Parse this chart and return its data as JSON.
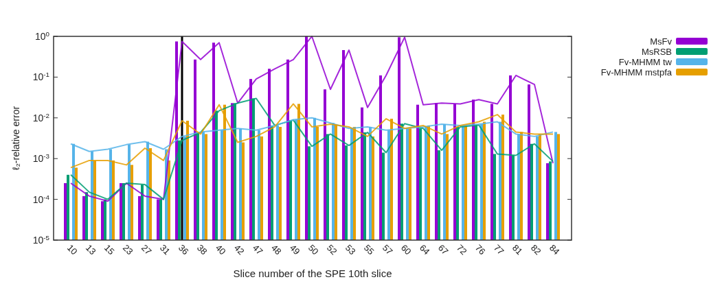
{
  "chart_data": {
    "type": "bar",
    "xlabel": "Slice number of the SPE 10th slice",
    "ylabel": "ℓ₂-relative error",
    "categories": [
      "10",
      "13",
      "15",
      "23",
      "27",
      "31",
      "36",
      "38",
      "40",
      "42",
      "47",
      "48",
      "49",
      "50",
      "52",
      "53",
      "55",
      "57",
      "60",
      "64",
      "67",
      "72",
      "76",
      "77",
      "81",
      "82",
      "84"
    ],
    "log": "y",
    "ylim": [
      1e-05,
      1
    ],
    "yticks": [
      {
        "value": 1e-05,
        "label": "10$^{-5}$"
      },
      {
        "value": 0.0001,
        "label": "10$^{-4}$"
      },
      {
        "value": 0.001,
        "label": "10$^{-3}$"
      },
      {
        "value": 0.01,
        "label": "10$^{-2}$"
      },
      {
        "value": 0.1,
        "label": "10$^{-1}$"
      },
      {
        "value": 1,
        "label": "10$^{0}$"
      }
    ],
    "legend": "top right",
    "ref_lines": [
      {
        "axis": "x",
        "value": "36",
        "color": "#000000"
      }
    ],
    "series": [
      {
        "name": "MsFv",
        "color": "#9400d3",
        "values": [
          0.00025,
          0.00012,
          9e-05,
          0.00025,
          0.00012,
          0.0001,
          0.75,
          0.27,
          0.7,
          0.023,
          0.09,
          0.16,
          0.27,
          1.0,
          0.05,
          0.46,
          0.018,
          0.11,
          0.95,
          0.021,
          0.023,
          0.022,
          0.028,
          0.022,
          0.11,
          0.066,
          0.00077
        ]
      },
      {
        "name": "MsRSB",
        "color": "#009e73",
        "values": [
          0.0004,
          0.00015,
          0.0001,
          0.00025,
          0.00023,
          0.0001,
          0.0028,
          0.0044,
          0.015,
          0.023,
          0.03,
          0.0065,
          0.0088,
          0.002,
          0.004,
          0.0021,
          0.0044,
          0.0014,
          0.0072,
          0.0055,
          0.0016,
          0.006,
          0.0067,
          0.0013,
          0.0012,
          0.0023,
          0.00085
        ]
      },
      {
        "name": "Fv-MHMM tw",
        "color": "#56b4e9",
        "values": [
          0.0023,
          0.0015,
          0.0017,
          0.0022,
          0.0026,
          0.0017,
          0.0035,
          0.0045,
          0.005,
          0.0055,
          0.005,
          0.0065,
          0.009,
          0.01,
          0.0075,
          0.0055,
          0.006,
          0.005,
          0.0055,
          0.006,
          0.007,
          0.0065,
          0.007,
          0.008,
          0.004,
          0.0035,
          0.0045
        ]
      },
      {
        "name": "Fv-MHMM mstpfa",
        "color": "#e69f00",
        "values": [
          0.0006,
          0.0009,
          0.0009,
          0.0007,
          0.0018,
          0.0009,
          0.0085,
          0.004,
          0.021,
          0.0025,
          0.0035,
          0.006,
          0.022,
          0.006,
          0.007,
          0.006,
          0.0035,
          0.0095,
          0.0055,
          0.0065,
          0.004,
          0.0065,
          0.008,
          0.012,
          0.0045,
          0.004,
          0.004
        ]
      },
      {
        "type": "line",
        "color": "#9400d3",
        "values": [
          0.00025,
          0.00012,
          9e-05,
          0.00025,
          0.00012,
          0.0001,
          0.75,
          0.27,
          0.7,
          0.023,
          0.09,
          0.16,
          0.27,
          1.0,
          0.05,
          0.46,
          0.018,
          0.11,
          0.95,
          0.021,
          0.023,
          0.022,
          0.028,
          0.022,
          0.11,
          0.066,
          0.00077
        ]
      },
      {
        "type": "line",
        "color": "#009e73",
        "values": [
          0.0004,
          0.00015,
          0.0001,
          0.00025,
          0.00023,
          0.0001,
          0.0028,
          0.0044,
          0.015,
          0.023,
          0.03,
          0.0065,
          0.0088,
          0.002,
          0.004,
          0.0021,
          0.0044,
          0.0014,
          0.0072,
          0.0055,
          0.0016,
          0.006,
          0.0067,
          0.0013,
          0.0012,
          0.0023,
          0.00085
        ]
      },
      {
        "type": "line",
        "color": "#56b4e9",
        "values": [
          0.0023,
          0.0015,
          0.0017,
          0.0022,
          0.0026,
          0.0017,
          0.0035,
          0.0045,
          0.005,
          0.0055,
          0.005,
          0.0065,
          0.009,
          0.01,
          0.0075,
          0.0055,
          0.006,
          0.005,
          0.0055,
          0.006,
          0.007,
          0.0065,
          0.007,
          0.008,
          0.004,
          0.0035,
          0.0045
        ]
      },
      {
        "type": "line",
        "color": "#e69f00",
        "values": [
          0.0006,
          0.0009,
          0.0009,
          0.0007,
          0.0018,
          0.0009,
          0.0085,
          0.004,
          0.021,
          0.0025,
          0.0035,
          0.006,
          0.022,
          0.006,
          0.007,
          0.006,
          0.0035,
          0.0095,
          0.0055,
          0.0065,
          0.004,
          0.0065,
          0.008,
          0.012,
          0.0045,
          0.004,
          0.004
        ]
      }
    ]
  }
}
